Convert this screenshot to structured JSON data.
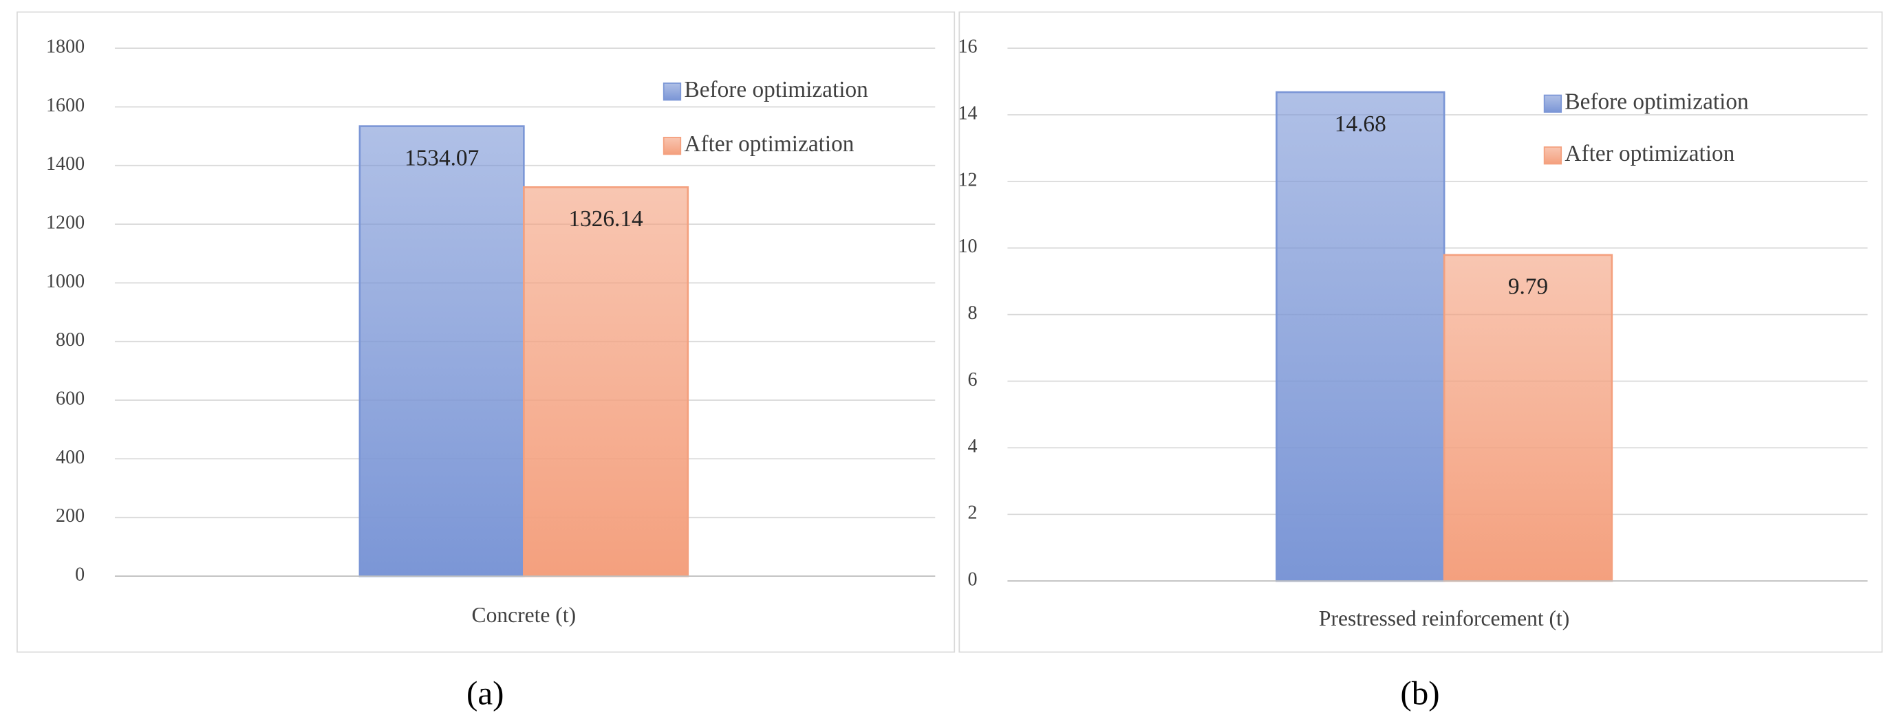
{
  "chart_data": [
    {
      "type": "bar",
      "label": "(a)",
      "categories": [
        "Concrete (t)"
      ],
      "series": [
        {
          "name": "Before optimization",
          "color": "#7b96d6",
          "values": [
            1534.07
          ]
        },
        {
          "name": "After optimization",
          "color": "#f4a07e",
          "values": [
            1326.14
          ]
        }
      ],
      "ylim": [
        0,
        1800
      ],
      "yticks": [
        0,
        200,
        400,
        600,
        800,
        1000,
        1200,
        1400,
        1600,
        1800
      ],
      "grid": true,
      "legend": "upper right"
    },
    {
      "type": "bar",
      "label": "(b)",
      "categories": [
        "Prestressed reinforcement (t)"
      ],
      "series": [
        {
          "name": "Before optimization",
          "color": "#7b96d6",
          "values": [
            14.68
          ]
        },
        {
          "name": "After optimization",
          "color": "#f4a07e",
          "values": [
            9.79
          ]
        }
      ],
      "ylim": [
        0,
        16
      ],
      "yticks": [
        0,
        2,
        4,
        6,
        8,
        10,
        12,
        14,
        16
      ],
      "grid": true,
      "legend": "upper right"
    }
  ]
}
